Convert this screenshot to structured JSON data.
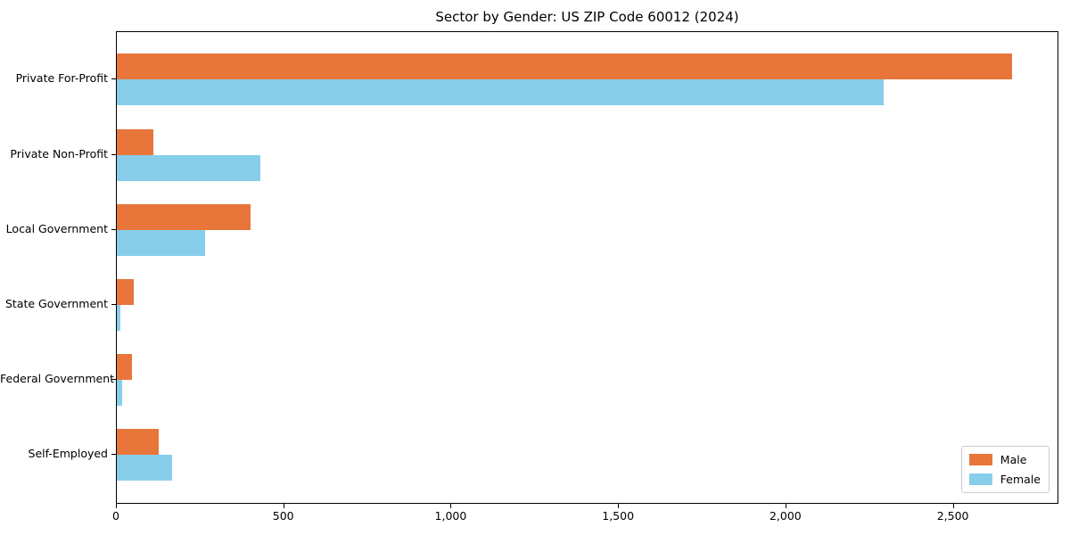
{
  "chart_data": {
    "type": "bar",
    "orientation": "horizontal",
    "title": "Sector by Gender: US ZIP Code 60012 (2024)",
    "categories": [
      "Private For-Profit",
      "Private Non-Profit",
      "Local Government",
      "State Government",
      "Federal Government",
      "Self-Employed"
    ],
    "series": [
      {
        "name": "Male",
        "color": "#e8763b",
        "values": [
          2675,
          110,
          400,
          50,
          45,
          125
        ]
      },
      {
        "name": "Female",
        "color": "#87ceeb",
        "values": [
          2290,
          430,
          265,
          10,
          15,
          165
        ]
      }
    ],
    "xlabel": "",
    "ylabel": "",
    "xlim": [
      0,
      2810
    ],
    "x_ticks": [
      0,
      500,
      1000,
      1500,
      2000,
      2500
    ],
    "x_tick_labels": [
      "0",
      "500",
      "1,000",
      "1,500",
      "2,000",
      "2,500"
    ],
    "legend_position": "lower right",
    "grid": false,
    "background_color": "#ffffff",
    "spine_color": "#000000"
  }
}
